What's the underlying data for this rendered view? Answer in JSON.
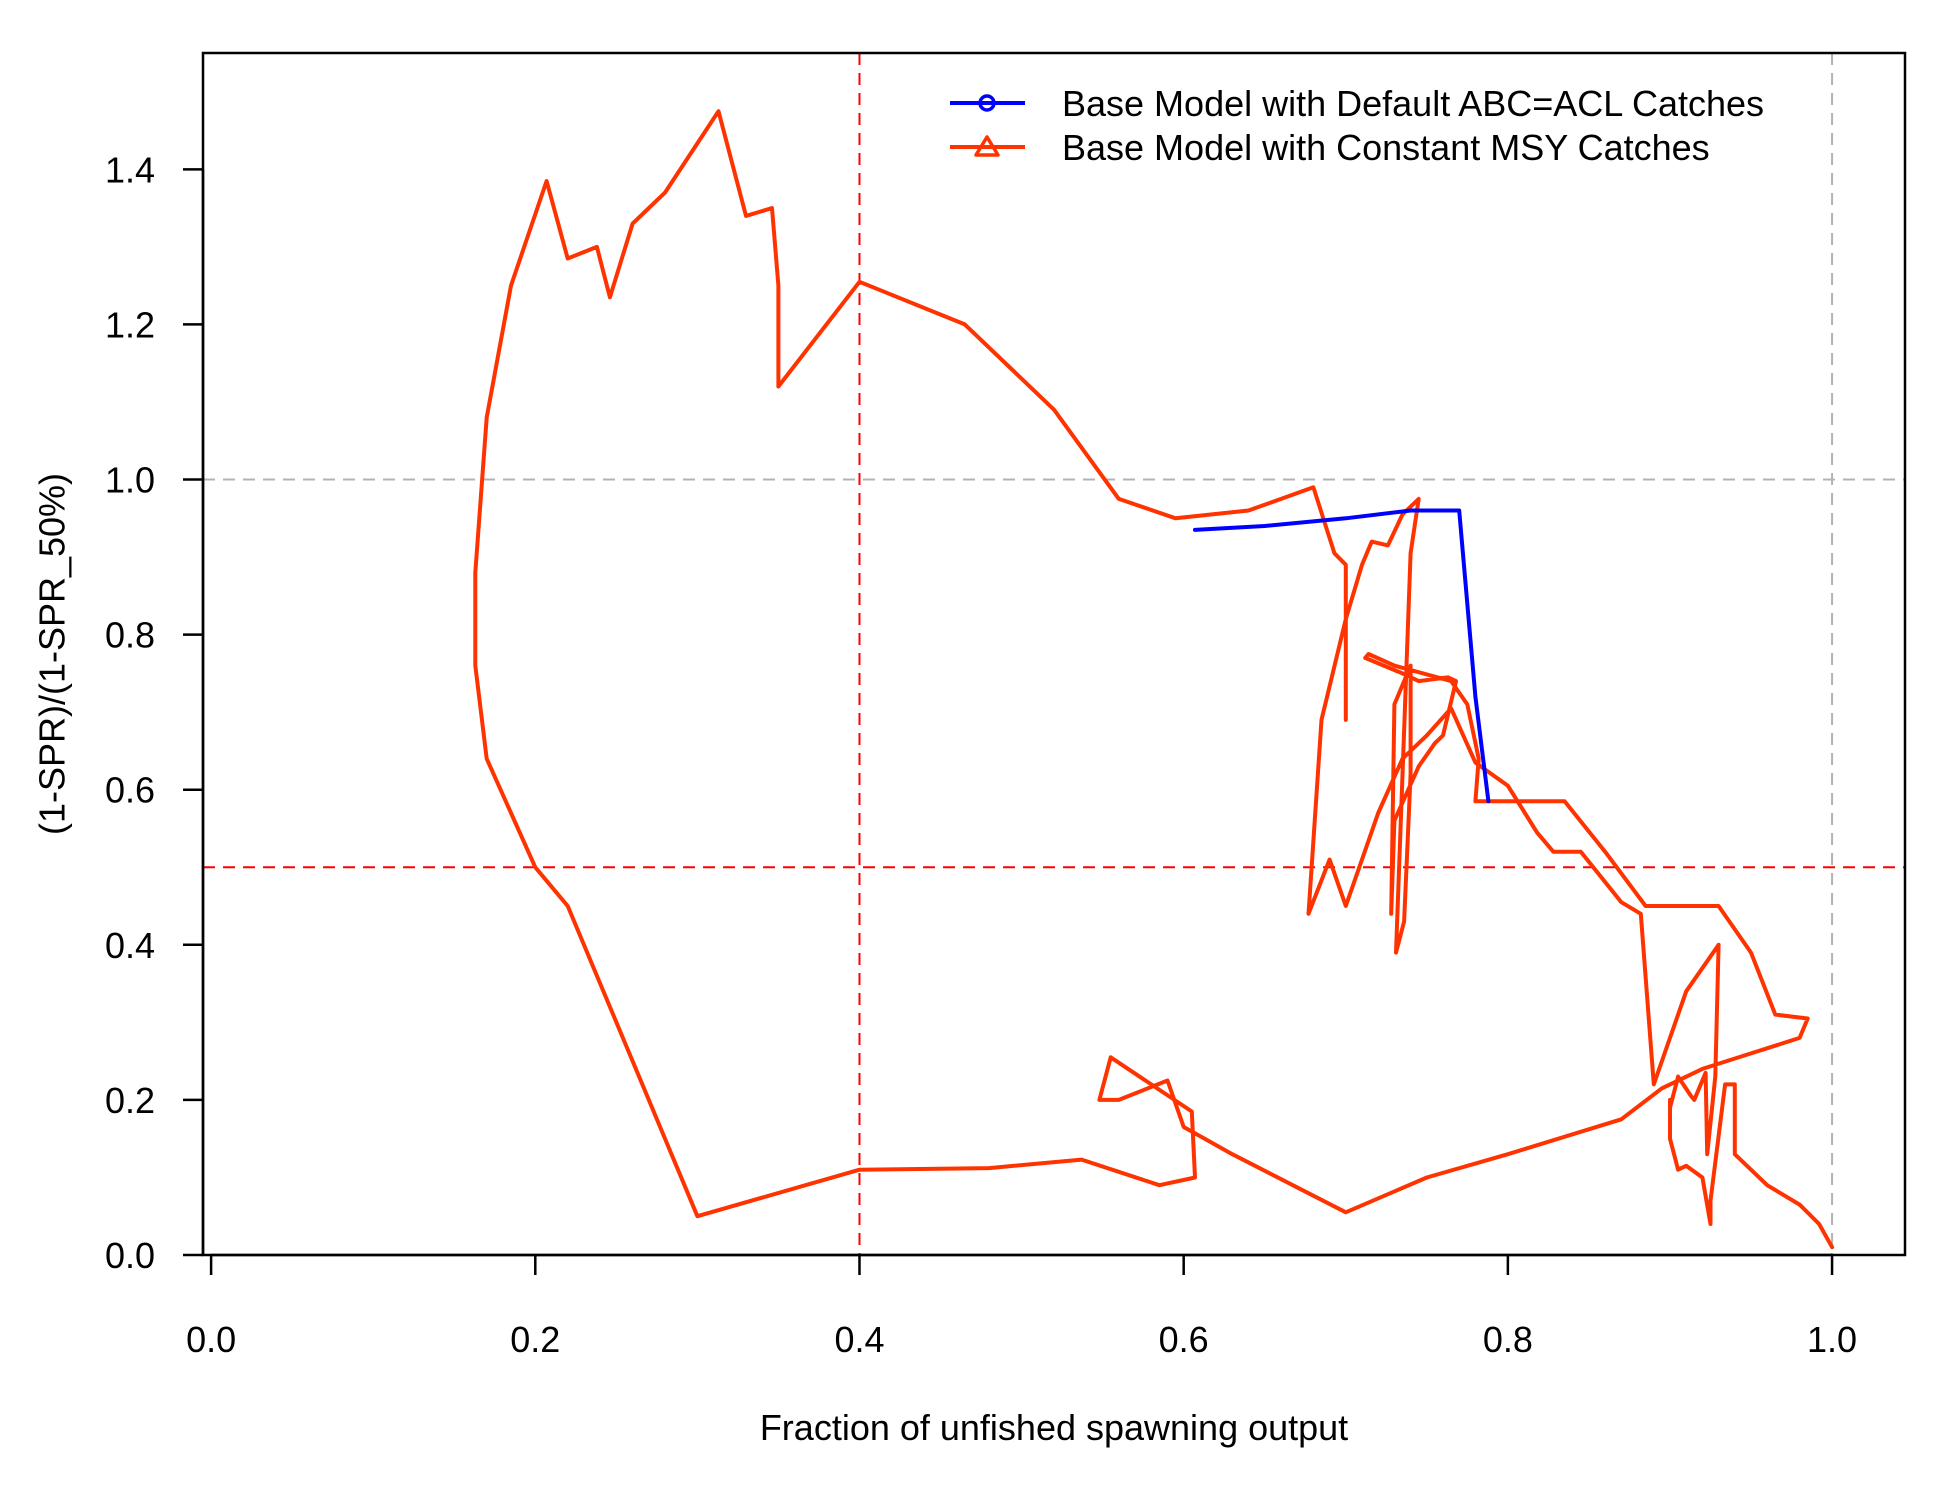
{
  "chart_data": {
    "type": "line",
    "title": "",
    "xlabel": "Fraction of unfished spawning output",
    "ylabel": "(1-SPR)/(1-SPR_50%)",
    "xlim": [
      -0.005,
      1.045
    ],
    "ylim": [
      0.0,
      1.55
    ],
    "xticks": [
      0.0,
      0.2,
      0.4,
      0.6,
      0.8,
      1.0
    ],
    "xtick_labels": [
      "0.0",
      "0.2",
      "0.4",
      "0.6",
      "0.8",
      "1.0"
    ],
    "yticks": [
      0.0,
      0.2,
      0.4,
      0.6,
      0.8,
      1.0,
      1.2,
      1.4
    ],
    "ytick_labels": [
      "0.0",
      "0.2",
      "0.4",
      "0.6",
      "0.8",
      "1.0",
      "1.2",
      "1.4"
    ],
    "grid": false,
    "legend_position": "top-right",
    "reference_lines": [
      {
        "axis": "x",
        "value": 0.4,
        "color": "#ff0000",
        "style": "dashed"
      },
      {
        "axis": "y",
        "value": 0.5,
        "color": "#ff0000",
        "style": "dashed"
      },
      {
        "axis": "x",
        "value": 1.0,
        "color": "#b3b3b3",
        "style": "dashed"
      },
      {
        "axis": "y",
        "value": 1.0,
        "color": "#b3b3b3",
        "style": "dashed"
      }
    ],
    "series": [
      {
        "name": "Base Model with Constant MSY Catches",
        "color": "#ff3300",
        "marker": "triangle",
        "points": [
          [
            1.0,
            0.01
          ],
          [
            0.992,
            0.04
          ],
          [
            0.98,
            0.065
          ],
          [
            0.96,
            0.09
          ],
          [
            0.94,
            0.13
          ],
          [
            0.94,
            0.22
          ],
          [
            0.934,
            0.22
          ],
          [
            0.925,
            0.07
          ],
          [
            0.925,
            0.04
          ],
          [
            0.92,
            0.1
          ],
          [
            0.91,
            0.115
          ],
          [
            0.905,
            0.11
          ],
          [
            0.9,
            0.15
          ],
          [
            0.9,
            0.2
          ],
          [
            0.9,
            0.19
          ],
          [
            0.905,
            0.23
          ],
          [
            0.913,
            0.205
          ],
          [
            0.915,
            0.2
          ],
          [
            0.922,
            0.235
          ],
          [
            0.923,
            0.13
          ],
          [
            0.928,
            0.23
          ],
          [
            0.93,
            0.4
          ],
          [
            0.91,
            0.34
          ],
          [
            0.89,
            0.22
          ],
          [
            0.882,
            0.44
          ],
          [
            0.87,
            0.455
          ],
          [
            0.845,
            0.52
          ],
          [
            0.828,
            0.52
          ],
          [
            0.818,
            0.545
          ],
          [
            0.8,
            0.605
          ],
          [
            0.78,
            0.635
          ],
          [
            0.765,
            0.705
          ],
          [
            0.75,
            0.67
          ],
          [
            0.735,
            0.64
          ],
          [
            0.72,
            0.57
          ],
          [
            0.7,
            0.45
          ],
          [
            0.69,
            0.51
          ],
          [
            0.677,
            0.44
          ],
          [
            0.685,
            0.69
          ],
          [
            0.7,
            0.82
          ],
          [
            0.71,
            0.89
          ],
          [
            0.716,
            0.92
          ],
          [
            0.726,
            0.915
          ],
          [
            0.735,
            0.955
          ],
          [
            0.745,
            0.975
          ],
          [
            0.74,
            0.905
          ],
          [
            0.731,
            0.39
          ],
          [
            0.736,
            0.43
          ],
          [
            0.74,
            0.62
          ],
          [
            0.74,
            0.76
          ],
          [
            0.73,
            0.71
          ],
          [
            0.728,
            0.44
          ],
          [
            0.73,
            0.56
          ],
          [
            0.745,
            0.63
          ],
          [
            0.755,
            0.66
          ],
          [
            0.76,
            0.67
          ],
          [
            0.768,
            0.74
          ],
          [
            0.763,
            0.745
          ],
          [
            0.745,
            0.74
          ],
          [
            0.735,
            0.75
          ],
          [
            0.712,
            0.77
          ],
          [
            0.714,
            0.775
          ],
          [
            0.73,
            0.76
          ],
          [
            0.765,
            0.74
          ],
          [
            0.775,
            0.71
          ],
          [
            0.782,
            0.64
          ],
          [
            0.78,
            0.585
          ],
          [
            0.8,
            0.585
          ],
          [
            0.835,
            0.585
          ],
          [
            0.86,
            0.52
          ],
          [
            0.885,
            0.45
          ],
          [
            0.93,
            0.45
          ],
          [
            0.95,
            0.39
          ],
          [
            0.965,
            0.31
          ],
          [
            0.985,
            0.305
          ],
          [
            0.98,
            0.28
          ],
          [
            0.95,
            0.26
          ],
          [
            0.92,
            0.24
          ],
          [
            0.895,
            0.215
          ],
          [
            0.87,
            0.175
          ],
          [
            0.8,
            0.13
          ],
          [
            0.75,
            0.1
          ],
          [
            0.7,
            0.055
          ],
          [
            0.63,
            0.13
          ],
          [
            0.6,
            0.165
          ],
          [
            0.59,
            0.225
          ],
          [
            0.56,
            0.2
          ],
          [
            0.548,
            0.2
          ],
          [
            0.555,
            0.255
          ],
          [
            0.605,
            0.185
          ],
          [
            0.607,
            0.1
          ],
          [
            0.585,
            0.09
          ],
          [
            0.537,
            0.123
          ],
          [
            0.48,
            0.112
          ],
          [
            0.4,
            0.11
          ],
          [
            0.3,
            0.05
          ],
          [
            0.26,
            0.25
          ],
          [
            0.22,
            0.45
          ],
          [
            0.2,
            0.5
          ],
          [
            0.17,
            0.64
          ],
          [
            0.163,
            0.76
          ],
          [
            0.163,
            0.88
          ],
          [
            0.17,
            1.08
          ],
          [
            0.185,
            1.25
          ],
          [
            0.207,
            1.385
          ],
          [
            0.22,
            1.285
          ],
          [
            0.238,
            1.3
          ],
          [
            0.246,
            1.235
          ],
          [
            0.26,
            1.33
          ],
          [
            0.28,
            1.37
          ],
          [
            0.313,
            1.475
          ],
          [
            0.33,
            1.34
          ],
          [
            0.346,
            1.35
          ],
          [
            0.35,
            1.25
          ],
          [
            0.35,
            1.12
          ],
          [
            0.4,
            1.255
          ],
          [
            0.465,
            1.2
          ],
          [
            0.52,
            1.09
          ],
          [
            0.56,
            0.975
          ],
          [
            0.595,
            0.95
          ],
          [
            0.64,
            0.96
          ],
          [
            0.68,
            0.99
          ],
          [
            0.693,
            0.905
          ],
          [
            0.7,
            0.89
          ],
          [
            0.7,
            0.69
          ]
        ]
      },
      {
        "name": "Base Model with Default ABC=ACL Catches",
        "color": "#0000ff",
        "marker": "circle",
        "points": [
          [
            0.607,
            0.935
          ],
          [
            0.65,
            0.94
          ],
          [
            0.7,
            0.95
          ],
          [
            0.74,
            0.96
          ],
          [
            0.765,
            0.96
          ],
          [
            0.77,
            0.96
          ],
          [
            0.78,
            0.72
          ],
          [
            0.788,
            0.585
          ]
        ]
      }
    ]
  }
}
